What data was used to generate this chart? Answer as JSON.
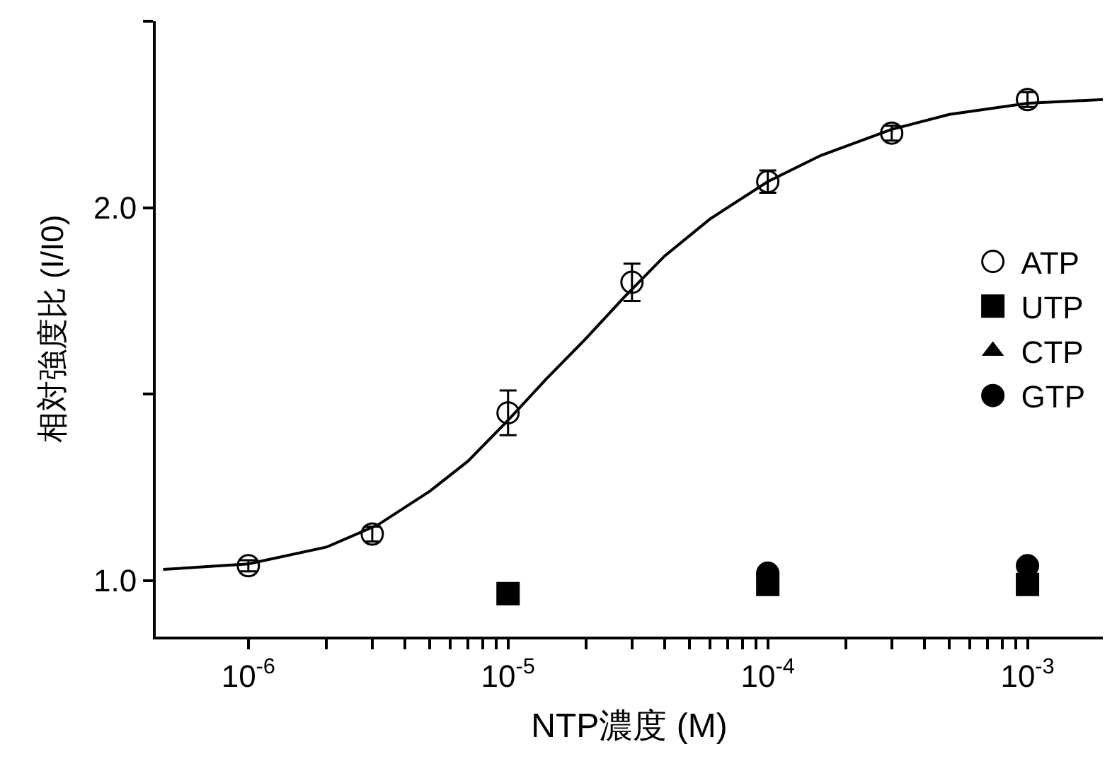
{
  "chart_data": {
    "type": "scatter",
    "xlabel": "NTP濃度 (M)",
    "ylabel": "相対強度比 (I/I0)",
    "log": "x",
    "grid": false,
    "legend": "right",
    "xlim": [
      4.4e-07,
      0.00195
    ],
    "ylim": [
      0.85,
      2.5
    ],
    "xticks": [
      {
        "value": 1e-06,
        "label": "10$^{-6}$"
      },
      {
        "value": 2e-06,
        "label": null
      },
      {
        "value": 3e-06,
        "label": null
      },
      {
        "value": 4e-06,
        "label": null
      },
      {
        "value": 5e-06,
        "label": null
      },
      {
        "value": 6e-06,
        "label": null
      },
      {
        "value": 7e-06,
        "label": null
      },
      {
        "value": 8e-06,
        "label": null
      },
      {
        "value": 9e-06,
        "label": null
      },
      {
        "value": 1e-05,
        "label": "10$^{-5}$"
      },
      {
        "value": 2e-05,
        "label": null
      },
      {
        "value": 3e-05,
        "label": null
      },
      {
        "value": 4e-05,
        "label": null
      },
      {
        "value": 5e-05,
        "label": null
      },
      {
        "value": 6e-05,
        "label": null
      },
      {
        "value": 7e-05,
        "label": null
      },
      {
        "value": 8e-05,
        "label": null
      },
      {
        "value": 9e-05,
        "label": null
      },
      {
        "value": 0.0001,
        "label": "10$^{-4}$"
      },
      {
        "value": 0.0002,
        "label": null
      },
      {
        "value": 0.0003,
        "label": null
      },
      {
        "value": 0.0004,
        "label": null
      },
      {
        "value": 0.0005,
        "label": null
      },
      {
        "value": 0.0006,
        "label": null
      },
      {
        "value": 0.0007,
        "label": null
      },
      {
        "value": 0.0008,
        "label": null
      },
      {
        "value": 0.0009,
        "label": null
      },
      {
        "value": 0.001,
        "label": "10$^{-3}$"
      }
    ],
    "yticks": [
      {
        "value": 1,
        "label": "1.0"
      },
      {
        "value": 1.5,
        "label": null
      },
      {
        "value": 2,
        "label": "2.0"
      },
      {
        "value": 2.5,
        "label": null
      }
    ],
    "series": [
      {
        "type": "line",
        "color": "#000000",
        "marker": "none",
        "line_style": "solid",
        "x": [
          4.7e-07,
          1e-06,
          2e-06,
          3.16e-06,
          5e-06,
          7e-06,
          1e-05,
          1.4e-05,
          2e-05,
          2.8e-05,
          4e-05,
          6e-05,
          0.0001,
          0.00016,
          0.0003,
          0.0005,
          0.001,
          0.00195
        ],
        "values": [
          1.03,
          1.045,
          1.09,
          1.15,
          1.24,
          1.32,
          1.43,
          1.54,
          1.65,
          1.76,
          1.87,
          1.97,
          2.07,
          2.14,
          2.21,
          2.25,
          2.28,
          2.29
        ]
      },
      {
        "name": "ATP",
        "color": "#000000",
        "x": [
          1e-06,
          3e-06,
          1e-05,
          3e-05,
          0.0001,
          0.0003,
          0.001
        ],
        "values": [
          1.04,
          1.125,
          1.45,
          1.8,
          2.07,
          2.2,
          2.29
        ],
        "errors": [
          0.015,
          0.02,
          0.06,
          0.05,
          0.03,
          0.02,
          0.02
        ]
      },
      {
        "name": "UTP",
        "color": "#000000",
        "marker": "square",
        "x": [
          1e-05,
          0.0001,
          0.001
        ],
        "values": [
          0.965,
          0.99,
          0.99
        ]
      },
      {
        "name": "CTP",
        "color": "#000000",
        "marker": "triangle",
        "values": [
          null
        ]
      },
      {
        "name": "GTP",
        "color": "#000000",
        "marker": "circle",
        "x": [
          0.0001,
          0.001
        ],
        "values": [
          1.02,
          1.04
        ]
      }
    ]
  }
}
